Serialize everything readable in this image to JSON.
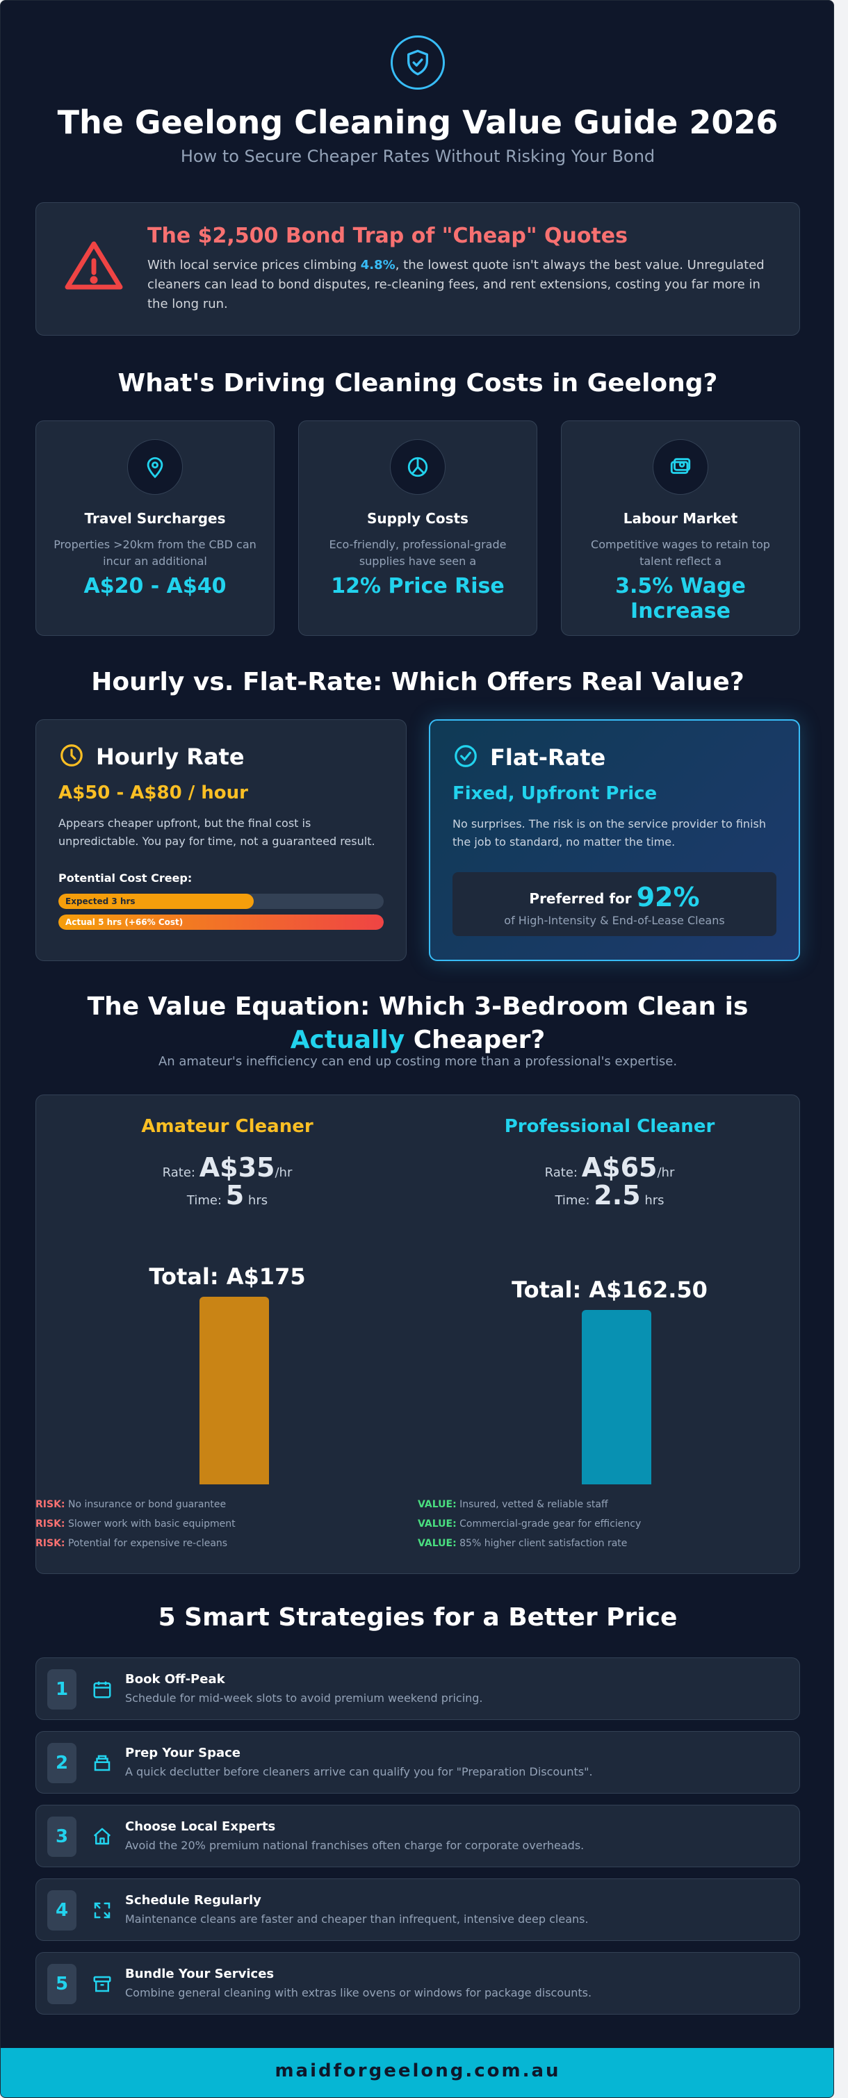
{
  "header": {
    "icon": "shield-check-icon",
    "title": "The Geelong Cleaning Value Guide 2026",
    "subtitle": "How to Secure Cheaper Rates Without Risking Your Bond"
  },
  "warning": {
    "icon": "warning-triangle-icon",
    "title": "The $2,500 Bond Trap of \"Cheap\" Quotes",
    "text_before": "With local service prices climbing ",
    "highlight": "4.8%",
    "text_after": ", the lowest quote isn't always the best value. Unregulated cleaners can lead to bond disputes, re-cleaning fees, and rent extensions, costing you far more in the long run."
  },
  "drivers": {
    "heading": "What's Driving Cleaning Costs in Geelong?",
    "items": [
      {
        "icon": "map-pin-icon",
        "title": "Travel Surcharges",
        "desc": "Properties >20km from the CBD can incur an additional",
        "value": "A$20 - A$40"
      },
      {
        "icon": "leaf-icon",
        "title": "Supply Costs",
        "desc": "Eco-friendly, professional-grade supplies have seen a",
        "value": "12% Price Rise"
      },
      {
        "icon": "money-icon",
        "title": "Labour Market",
        "desc": "Competitive wages to retain top talent reflect a",
        "value": "3.5% Wage Increase"
      }
    ]
  },
  "comparison": {
    "heading": "Hourly vs. Flat-Rate: Which Offers Real Value?",
    "hourly": {
      "icon": "clock-icon",
      "title": "Hourly Rate",
      "price": "A$50 - A$80 / hour",
      "desc": "Appears cheaper upfront, but the final cost is unpredictable. You pay for time, not a guaranteed result.",
      "creep_label": "Potential Cost Creep:",
      "bars": [
        {
          "label": "Expected 3 hrs",
          "fraction": 0.6
        },
        {
          "label": "Actual 5 hrs (+66% Cost)",
          "fraction": 1.0
        }
      ]
    },
    "flat": {
      "icon": "check-circle-icon",
      "title": "Flat-Rate",
      "price": "Fixed, Upfront Price",
      "desc": "No surprises. The risk is on the service provider to finish the job to standard, no matter the time.",
      "pref_prefix": "Preferred for",
      "pref_value": "92%",
      "pref_sub": "of High-Intensity & End-of-Lease Cleans"
    }
  },
  "value_equation": {
    "heading_a": "The Value Equation: Which 3-Bedroom Clean is",
    "heading_hl": "Actually",
    "heading_b": "Cheaper?",
    "subtitle": "An amateur's inefficiency can end up costing more than a professional's expertise.",
    "rate_label": "Rate:",
    "time_label": "Time:",
    "per_hr": "/hr",
    "hrs": "hrs",
    "amateur": {
      "title": "Amateur Cleaner",
      "rate": "A$35",
      "time": "5",
      "total": "Total: A$175",
      "total_value": 175,
      "notes": [
        {
          "tag": "RISK:",
          "text": "No insurance or bond guarantee"
        },
        {
          "tag": "RISK:",
          "text": "Slower work with basic equipment"
        },
        {
          "tag": "RISK:",
          "text": "Potential for expensive re-cleans"
        }
      ]
    },
    "professional": {
      "title": "Professional Cleaner",
      "rate": "A$65",
      "time": "2.5",
      "total": "Total: A$162.50",
      "total_value": 162.5,
      "notes": [
        {
          "tag": "VALUE:",
          "text": "Insured, vetted & reliable staff"
        },
        {
          "tag": "VALUE:",
          "text": "Commercial-grade gear for efficiency"
        },
        {
          "tag": "VALUE:",
          "text": "85% higher client satisfaction rate"
        }
      ]
    }
  },
  "strategies": {
    "heading": "5 Smart Strategies for a Better Price",
    "items": [
      {
        "num": "1",
        "icon": "calendar-icon",
        "title": "Book Off-Peak",
        "desc": "Schedule for mid-week slots to avoid premium weekend pricing."
      },
      {
        "num": "2",
        "icon": "storage-box-icon",
        "title": "Prep Your Space",
        "desc": "A quick declutter before cleaners arrive can qualify you for \"Preparation Discounts\"."
      },
      {
        "num": "3",
        "icon": "home-icon",
        "title": "Choose Local Experts",
        "desc": "Avoid the 20% premium national franchises often charge for corporate overheads."
      },
      {
        "num": "4",
        "icon": "repeat-icon",
        "title": "Schedule Regularly",
        "desc": "Maintenance cleans are faster and cheaper than infrequent, intensive deep cleans."
      },
      {
        "num": "5",
        "icon": "archive-icon",
        "title": "Bundle Your Services",
        "desc": "Combine general cleaning with extras like ovens or windows for package discounts."
      }
    ]
  },
  "footer": {
    "url": "maidforgeelong.com.au"
  },
  "colors": {
    "accent": "#22d3ee",
    "danger": "#f87171",
    "warning": "#fbbf24",
    "success": "#4ade80",
    "background": "#0f172a"
  }
}
